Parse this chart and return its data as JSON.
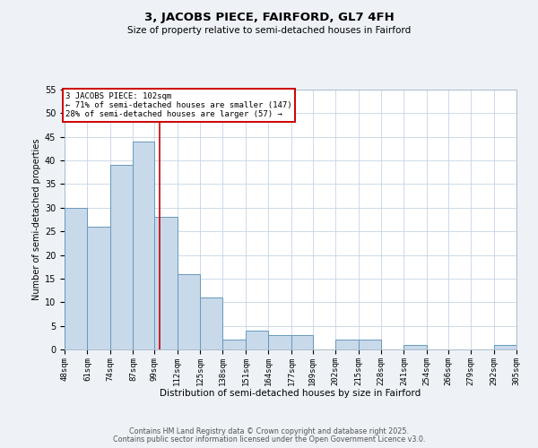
{
  "title": "3, JACOBS PIECE, FAIRFORD, GL7 4FH",
  "subtitle": "Size of property relative to semi-detached houses in Fairford",
  "xlabel": "Distribution of semi-detached houses by size in Fairford",
  "ylabel": "Number of semi-detached properties",
  "bin_labels": [
    "48sqm",
    "61sqm",
    "74sqm",
    "87sqm",
    "99sqm",
    "112sqm",
    "125sqm",
    "138sqm",
    "151sqm",
    "164sqm",
    "177sqm",
    "189sqm",
    "202sqm",
    "215sqm",
    "228sqm",
    "241sqm",
    "254sqm",
    "266sqm",
    "279sqm",
    "292sqm",
    "305sqm"
  ],
  "bin_edges": [
    48,
    61,
    74,
    87,
    99,
    112,
    125,
    138,
    151,
    164,
    177,
    189,
    202,
    215,
    228,
    241,
    254,
    266,
    279,
    292,
    305
  ],
  "counts": [
    30,
    26,
    39,
    44,
    28,
    16,
    11,
    2,
    4,
    3,
    3,
    0,
    2,
    2,
    0,
    1,
    0,
    0,
    0,
    1,
    0
  ],
  "property_size": 102,
  "bar_color": "#c8d9ea",
  "bar_edge_color": "#6699bb",
  "vline_color": "#cc0000",
  "annotation_box_edge_color": "#cc0000",
  "annotation_title": "3 JACOBS PIECE: 102sqm",
  "annotation_line1": "← 71% of semi-detached houses are smaller (147)",
  "annotation_line2": "28% of semi-detached houses are larger (57) →",
  "ylim": [
    0,
    55
  ],
  "yticks": [
    0,
    5,
    10,
    15,
    20,
    25,
    30,
    35,
    40,
    45,
    50,
    55
  ],
  "footer1": "Contains HM Land Registry data © Crown copyright and database right 2025.",
  "footer2": "Contains public sector information licensed under the Open Government Licence v3.0.",
  "bg_color": "#eef2f7",
  "plot_bg_color": "#ffffff"
}
